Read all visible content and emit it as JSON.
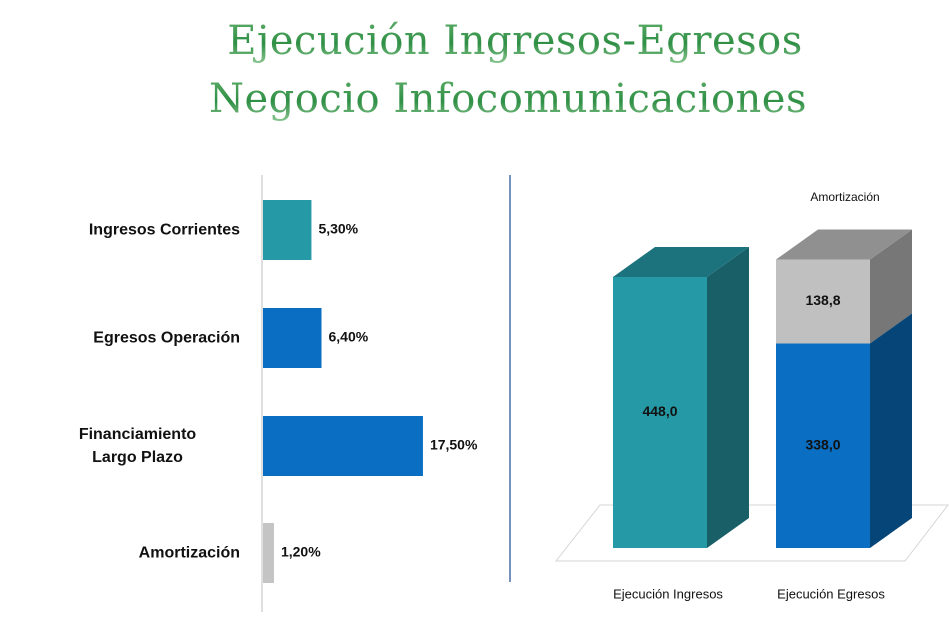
{
  "title": [
    "Ejecución Ingresos-Egresos",
    "Negocio Infocomunicaciones"
  ],
  "chart_data": [
    {
      "type": "hbar",
      "categories": [
        "Ingresos Corrientes",
        "Egresos Operación",
        "Financiamiento Largo Plazo",
        "Amortización"
      ],
      "values": [
        5.3,
        6.4,
        17.5,
        1.2
      ],
      "value_labels": [
        "5,30%",
        "6,40%",
        "17,50%",
        "1,20%"
      ],
      "colors": [
        "#2699a6",
        "#0a6fc2",
        "#0a6fc2",
        "#c4c4c4"
      ]
    },
    {
      "type": "bar3d_stacked",
      "categories": [
        "Ejecución Ingresos",
        "Ejecución Egresos"
      ],
      "series": [
        {
          "colors": [
            "#2699a6",
            "#0a6fc2"
          ],
          "values": [
            448.0,
            338.0
          ],
          "value_labels": [
            "448,0",
            "338,0"
          ]
        },
        {
          "name": "Amortización",
          "color": "#c0c0c0",
          "values": [
            null,
            138.8
          ],
          "value_labels": [
            null,
            "138,8"
          ]
        }
      ]
    }
  ]
}
